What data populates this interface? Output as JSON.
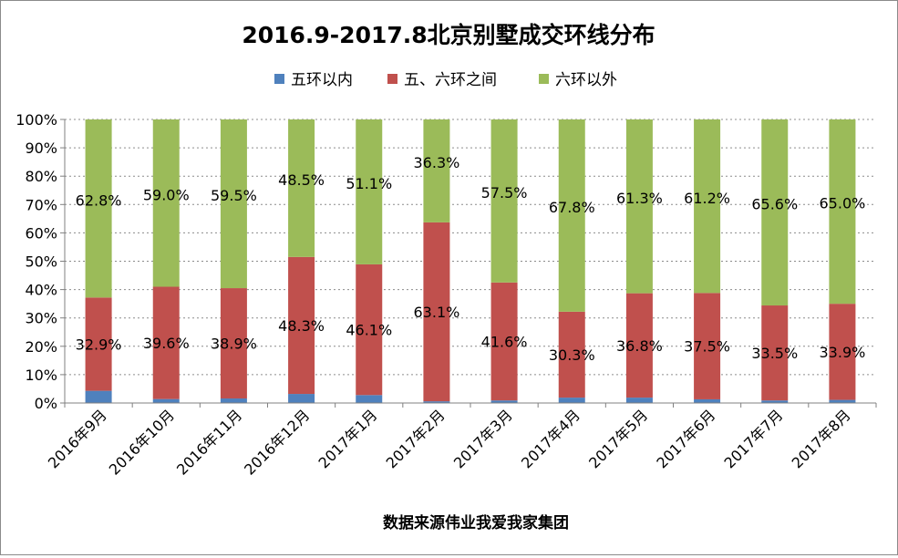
{
  "chart_data": {
    "type": "bar",
    "stacked": true,
    "title": "2016.9-2017.8北京别墅成交环线分布",
    "xlabel": "数据来源伟业我爱我家集团",
    "ylabel": "",
    "ylim": [
      0,
      100
    ],
    "yticks": [
      "0%",
      "10%",
      "20%",
      "30%",
      "40%",
      "50%",
      "60%",
      "70%",
      "80%",
      "90%",
      "100%"
    ],
    "grid": "horizontal-dotted",
    "legend_position": "top",
    "categories": [
      "2016年9月",
      "2016年10月",
      "2016年11月",
      "2016年12月",
      "2017年1月",
      "2017年2月",
      "2017年3月",
      "2017年4月",
      "2017年5月",
      "2017年6月",
      "2017年7月",
      "2017年8月"
    ],
    "series": [
      {
        "name": "五环以内",
        "color": "#4f81bd",
        "values": [
          4.3,
          1.4,
          1.6,
          3.2,
          2.8,
          0.6,
          0.9,
          1.9,
          1.9,
          1.3,
          0.9,
          1.1
        ],
        "labels": [
          "",
          "",
          "",
          "",
          "",
          "",
          "",
          "",
          "",
          "",
          "",
          ""
        ]
      },
      {
        "name": "五、六环之间",
        "color": "#c0504d",
        "values": [
          32.9,
          39.6,
          38.9,
          48.3,
          46.1,
          63.1,
          41.6,
          30.3,
          36.8,
          37.5,
          33.5,
          33.9
        ],
        "labels": [
          "32.9%",
          "39.6%",
          "38.9%",
          "48.3%",
          "46.1%",
          "63.1%",
          "41.6%",
          "30.3%",
          "36.8%",
          "37.5%",
          "33.5%",
          "33.9%"
        ]
      },
      {
        "name": "六环以外",
        "color": "#9bbb59",
        "values": [
          62.8,
          59.0,
          59.5,
          48.5,
          51.1,
          36.3,
          57.5,
          67.8,
          61.3,
          61.2,
          65.6,
          65.0
        ],
        "labels": [
          "62.8%",
          "59.0%",
          "59.5%",
          "48.5%",
          "51.1%",
          "36.3%",
          "57.5%",
          "67.8%",
          "61.3%",
          "61.2%",
          "65.6%",
          "65.0%"
        ]
      }
    ]
  }
}
